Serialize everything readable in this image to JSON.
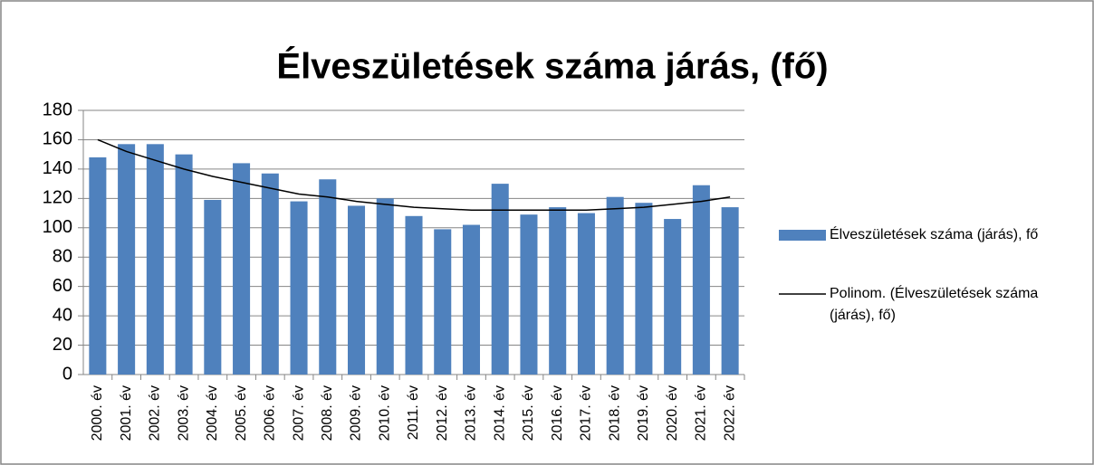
{
  "chart_data": {
    "type": "bar",
    "title": "Élveszületések száma járás, (fő)",
    "categories": [
      "2000. év",
      "2001. év",
      "2002. év",
      "2003. év",
      "2004. év",
      "2005. év",
      "2006. év",
      "2007. év",
      "2008. év",
      "2009. év",
      "2010. év",
      "2011. év",
      "2012. év",
      "2013. év",
      "2014. év",
      "2015. év",
      "2016. év",
      "2017. év",
      "2018. év",
      "2019. év",
      "2020. év",
      "2021. év",
      "2022. év"
    ],
    "series": [
      {
        "name": "Élveszületések száma (járás), fő",
        "type": "bar",
        "color": "#4f81bd",
        "values": [
          148,
          157,
          157,
          150,
          119,
          144,
          137,
          118,
          133,
          115,
          120,
          108,
          99,
          102,
          130,
          109,
          114,
          110,
          121,
          117,
          106,
          129,
          114
        ]
      },
      {
        "name": "Polinom. (Élveszületések száma (járás), fő)",
        "type": "line",
        "color": "#000000",
        "values": [
          160,
          152,
          146,
          140,
          135,
          131,
          127,
          123,
          121,
          118,
          116,
          114,
          113,
          112,
          112,
          112,
          112,
          112,
          113,
          114,
          116,
          118,
          121
        ]
      }
    ],
    "ylim": [
      0,
      180
    ],
    "yticks": [
      0,
      20,
      40,
      60,
      80,
      100,
      120,
      140,
      160,
      180
    ],
    "grid": true,
    "legend": "right"
  }
}
